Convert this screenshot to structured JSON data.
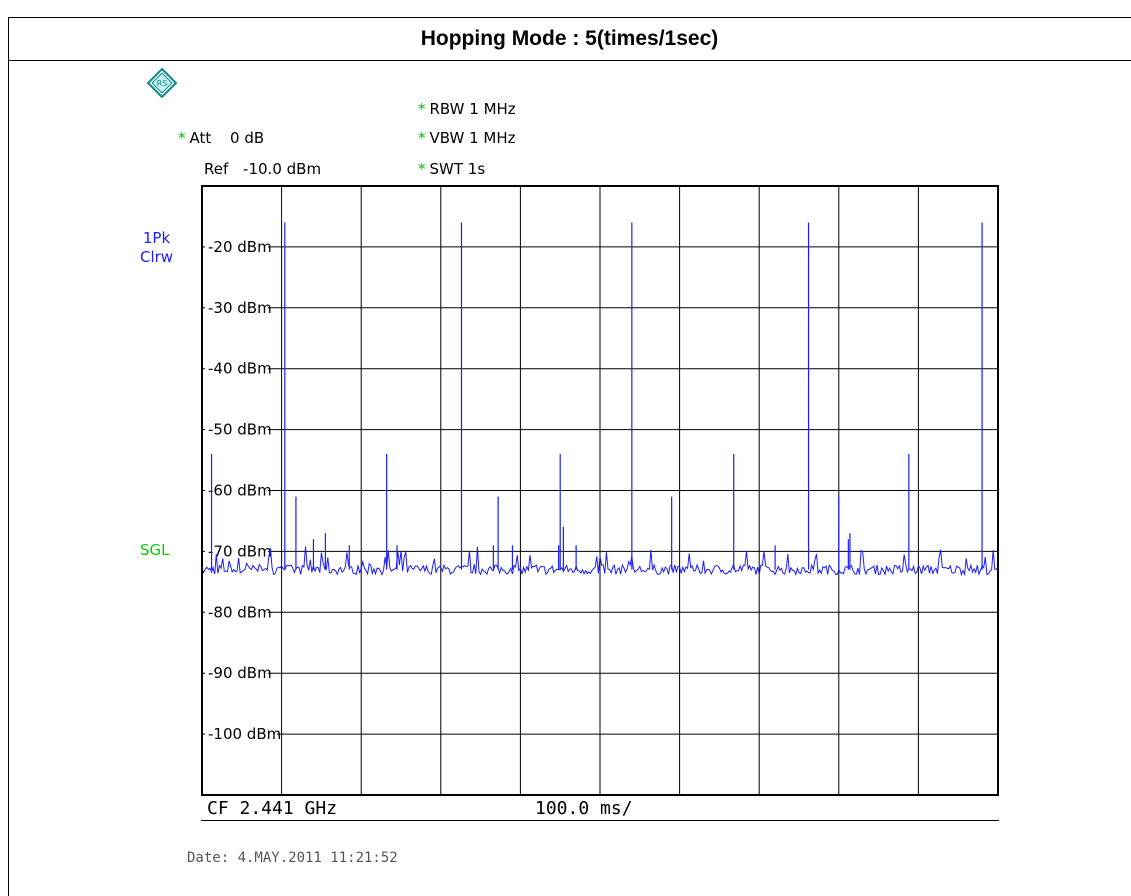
{
  "title": "Hopping Mode : 5(times/1sec)",
  "instrument": {
    "att": "Att",
    "att_value": "0 dB",
    "ref": "Ref",
    "ref_value": "-10.0 dBm",
    "rbw": "RBW 1 MHz",
    "vbw": "VBW 1 MHz",
    "swt": "SWT 1s",
    "trace_line1": "1Pk",
    "trace_line2": "Clrw",
    "sgl": "SGL",
    "cf": "CF 2.441 GHz",
    "div": "100.0 ms/",
    "date": "Date: 4.MAY.2011   11:21:52"
  },
  "colors": {
    "trace": "#1c1cff",
    "star": "#00c000",
    "sgl": "#00d000",
    "grid": "#000000"
  },
  "chart_data": {
    "type": "line",
    "title": "Hopping Mode : 5(times/1sec)",
    "xlabel": "100.0 ms/",
    "ylabel": "",
    "xlim": [
      0,
      1000
    ],
    "ylim": [
      -110,
      -10
    ],
    "yticks": [
      {
        "value": -20,
        "label": "-20 dBm"
      },
      {
        "value": -30,
        "label": "-30 dBm"
      },
      {
        "value": -40,
        "label": "-40 dBm"
      },
      {
        "value": -50,
        "label": "-50 dBm"
      },
      {
        "value": -60,
        "label": "-60 dBm"
      },
      {
        "value": -70,
        "label": "-70 dBm"
      },
      {
        "value": -80,
        "label": "-80 dBm"
      },
      {
        "value": -90,
        "label": "-90 dBm"
      },
      {
        "value": -100,
        "label": "-100 dBm"
      }
    ],
    "x_divisions": 10,
    "y_divisions": 10,
    "grid": true,
    "noise_floor": -73,
    "series": [
      {
        "peaks": [
          {
            "x": 12,
            "y": -54
          },
          {
            "x": 104,
            "y": -16
          },
          {
            "x": 118,
            "y": -61
          },
          {
            "x": 140,
            "y": -68
          },
          {
            "x": 155,
            "y": -67
          },
          {
            "x": 185,
            "y": -69
          },
          {
            "x": 232,
            "y": -54
          },
          {
            "x": 245,
            "y": -69
          },
          {
            "x": 326,
            "y": -16
          },
          {
            "x": 366,
            "y": -69
          },
          {
            "x": 372,
            "y": -61
          },
          {
            "x": 390,
            "y": -69
          },
          {
            "x": 448,
            "y": -69
          },
          {
            "x": 450,
            "y": -54
          },
          {
            "x": 454,
            "y": -66
          },
          {
            "x": 470,
            "y": -69
          },
          {
            "x": 540,
            "y": -16
          },
          {
            "x": 590,
            "y": -61
          },
          {
            "x": 668,
            "y": -54
          },
          {
            "x": 720,
            "y": -69
          },
          {
            "x": 762,
            "y": -16
          },
          {
            "x": 800,
            "y": -61
          },
          {
            "x": 812,
            "y": -68
          },
          {
            "x": 814,
            "y": -67
          },
          {
            "x": 888,
            "y": -54
          },
          {
            "x": 980,
            "y": -16
          }
        ]
      }
    ]
  }
}
